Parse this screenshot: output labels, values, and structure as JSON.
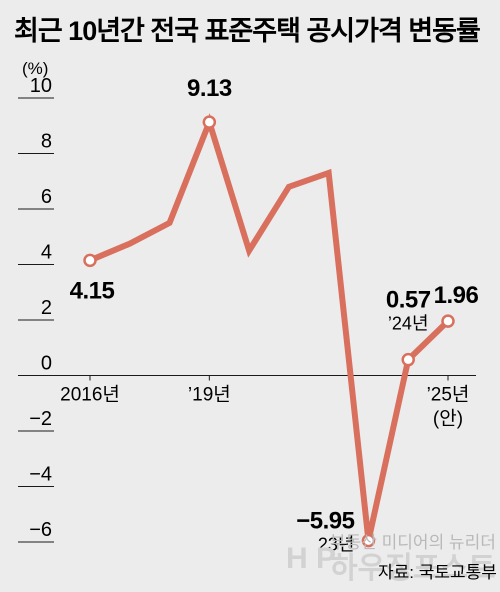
{
  "title": "최근 10년간 전국 표준주택 공시가격 변동률",
  "source": "자료: 국토교통부",
  "watermark": {
    "tagline": "부동산 미디어의 뉴리더",
    "brand": "하우징포스트"
  },
  "colors": {
    "background": "#ececec",
    "line": "#d9705e",
    "axis": "#1a1a1a"
  },
  "chart_data": {
    "type": "line",
    "title": "최근 10년간 전국 표준주택 공시가격 변동률",
    "unit_label": "(%)",
    "x": [
      2016,
      2017,
      2018,
      2019,
      2020,
      2021,
      2022,
      2023,
      2024,
      2025
    ],
    "values": [
      4.15,
      4.75,
      5.5,
      9.13,
      4.5,
      6.8,
      7.3,
      -5.95,
      0.57,
      1.96
    ],
    "ylim": [
      -6,
      10
    ],
    "yticks": [
      10,
      8,
      6,
      4,
      2,
      0,
      -2,
      -4,
      -6
    ],
    "ytick_labels": [
      "10",
      "8",
      "6",
      "4",
      "2",
      "0",
      "−2",
      "−4",
      "−6"
    ],
    "xtick_labels": [
      {
        "x": 2016,
        "lines": [
          "2016년"
        ]
      },
      {
        "x": 2019,
        "lines": [
          "’19년"
        ]
      },
      {
        "x": 2025,
        "lines": [
          "’25년",
          "(안)"
        ]
      }
    ],
    "annotations": [
      {
        "x": 2016,
        "value_label": "4.15",
        "sub_label": ""
      },
      {
        "x": 2019,
        "value_label": "9.13",
        "sub_label": ""
      },
      {
        "x": 2023,
        "value_label": "−5.95",
        "sub_label": "23년"
      },
      {
        "x": 2024,
        "value_label": "0.57",
        "sub_label": "’24년"
      },
      {
        "x": 2025,
        "value_label": "1.96",
        "sub_label": ""
      }
    ],
    "marked_points": [
      2016,
      2019,
      2023,
      2024,
      2025
    ],
    "grid": false,
    "legend": "none"
  }
}
